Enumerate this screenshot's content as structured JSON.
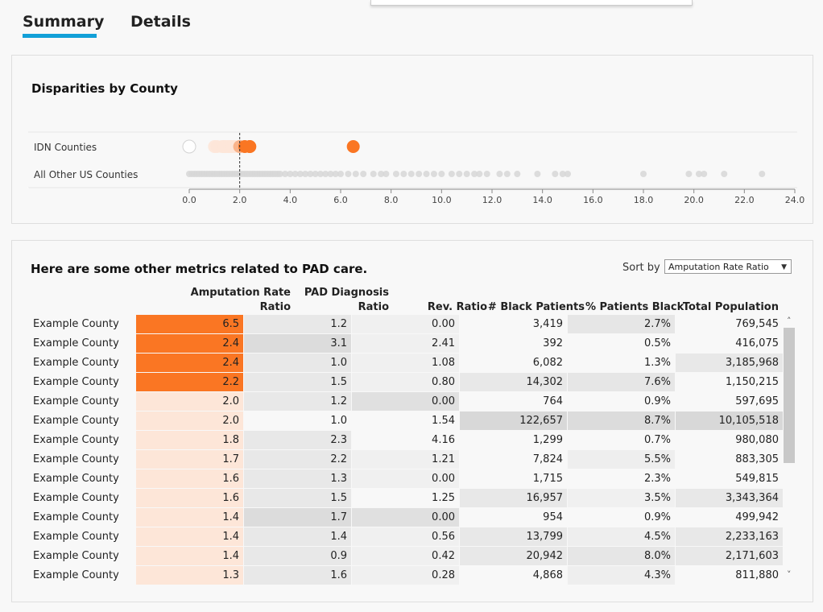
{
  "tabs": [
    {
      "label": "Summary",
      "active": true
    },
    {
      "label": "Details",
      "active": false
    }
  ],
  "chart_data": {
    "type": "scatter",
    "title": "Disparities by County",
    "rows": [
      "IDN Counties",
      "All Other US Counties"
    ],
    "xlim": [
      0,
      24
    ],
    "xticks": [
      "0.0",
      "2.0",
      "4.0",
      "6.0",
      "8.0",
      "10.0",
      "12.0",
      "14.0",
      "16.0",
      "18.0",
      "20.0",
      "22.0",
      "24.0"
    ],
    "reference_line": 2.0,
    "series": [
      {
        "row": "IDN Counties",
        "values": [
          0.0,
          1.0,
          1.1,
          1.3,
          1.4,
          1.4,
          1.4,
          1.5,
          1.6,
          1.6,
          1.7,
          1.8,
          2.0,
          2.0,
          2.2,
          2.4,
          2.4,
          6.5
        ]
      },
      {
        "row": "All Other US Counties",
        "values": [
          0.0,
          0.1,
          0.2,
          0.3,
          0.4,
          0.5,
          0.6,
          0.7,
          0.8,
          0.9,
          1.0,
          1.1,
          1.2,
          1.3,
          1.4,
          1.5,
          1.6,
          1.7,
          1.8,
          1.9,
          2.0,
          2.1,
          2.2,
          2.3,
          2.4,
          2.5,
          2.6,
          2.7,
          2.8,
          2.9,
          3.0,
          3.1,
          3.2,
          3.3,
          3.4,
          3.5,
          3.6,
          3.8,
          4.0,
          4.2,
          4.4,
          4.6,
          4.8,
          5.0,
          5.2,
          5.4,
          5.6,
          5.8,
          6.0,
          6.3,
          6.6,
          6.9,
          7.3,
          7.6,
          7.8,
          8.2,
          8.5,
          8.8,
          9.1,
          9.4,
          9.7,
          10.0,
          10.4,
          10.7,
          11.0,
          11.3,
          11.5,
          11.8,
          12.3,
          12.6,
          13.0,
          13.8,
          14.5,
          14.8,
          15.0,
          18.0,
          19.8,
          20.2,
          20.4,
          21.2,
          22.7
        ]
      }
    ],
    "colors": {
      "high": "#fa7623",
      "pale": "#fde6d8",
      "mid": "#f8b48b",
      "grey": "#d7d7d7",
      "ref": "#333333"
    }
  },
  "table": {
    "title": "Here are some other metrics related to PAD care.",
    "sort_label": "Sort by",
    "sort_value": "Amputation Rate Ratio",
    "headers": {
      "amp_line1": "Amputation Rate",
      "amp_line2": "Ratio",
      "pad_line1": "PAD Diagnosis",
      "pad_line2": "Ratio",
      "rev": "Rev. Ratio",
      "blk": "# Black Patients",
      "pct": "% Patients Black",
      "pop": "Total Population"
    },
    "rows": [
      {
        "county": "Example County",
        "amp": "6.5",
        "pad": "1.2",
        "rev": "0.00",
        "blk": "3,419",
        "pct": "2.7%",
        "pop": "769,545",
        "amp_hi": true
      },
      {
        "county": "Example County",
        "amp": "2.4",
        "pad": "3.1",
        "rev": "2.41",
        "blk": "392",
        "pct": "0.5%",
        "pop": "416,075",
        "amp_hi": true
      },
      {
        "county": "Example County",
        "amp": "2.4",
        "pad": "1.0",
        "rev": "1.08",
        "blk": "6,082",
        "pct": "1.3%",
        "pop": "3,185,968",
        "amp_hi": true
      },
      {
        "county": "Example County",
        "amp": "2.2",
        "pad": "1.5",
        "rev": "0.80",
        "blk": "14,302",
        "pct": "7.6%",
        "pop": "1,150,215",
        "amp_hi": true
      },
      {
        "county": "Example County",
        "amp": "2.0",
        "pad": "1.2",
        "rev": "0.00",
        "blk": "764",
        "pct": "0.9%",
        "pop": "597,695",
        "amp_hi": false
      },
      {
        "county": "Example County",
        "amp": "2.0",
        "pad": "1.0",
        "rev": "1.54",
        "blk": "122,657",
        "pct": "8.7%",
        "pop": "10,105,518",
        "amp_hi": false
      },
      {
        "county": "Example County",
        "amp": "1.8",
        "pad": "2.3",
        "rev": "4.16",
        "blk": "1,299",
        "pct": "0.7%",
        "pop": "980,080",
        "amp_hi": false
      },
      {
        "county": "Example County",
        "amp": "1.7",
        "pad": "2.2",
        "rev": "1.21",
        "blk": "7,824",
        "pct": "5.5%",
        "pop": "883,305",
        "amp_hi": false
      },
      {
        "county": "Example County",
        "amp": "1.6",
        "pad": "1.3",
        "rev": "0.00",
        "blk": "1,715",
        "pct": "2.3%",
        "pop": "549,815",
        "amp_hi": false
      },
      {
        "county": "Example County",
        "amp": "1.6",
        "pad": "1.5",
        "rev": "1.25",
        "blk": "16,957",
        "pct": "3.5%",
        "pop": "3,343,364",
        "amp_hi": false
      },
      {
        "county": "Example County",
        "amp": "1.4",
        "pad": "1.7",
        "rev": "0.00",
        "blk": "954",
        "pct": "0.9%",
        "pop": "499,942",
        "amp_hi": false
      },
      {
        "county": "Example County",
        "amp": "1.4",
        "pad": "1.4",
        "rev": "0.56",
        "blk": "13,799",
        "pct": "4.5%",
        "pop": "2,233,163",
        "amp_hi": false
      },
      {
        "county": "Example County",
        "amp": "1.4",
        "pad": "0.9",
        "rev": "0.42",
        "blk": "20,942",
        "pct": "8.0%",
        "pop": "2,171,603",
        "amp_hi": false
      },
      {
        "county": "Example County",
        "amp": "1.3",
        "pad": "1.6",
        "rev": "0.28",
        "blk": "4,868",
        "pct": "4.3%",
        "pop": "811,880",
        "amp_hi": false
      }
    ]
  }
}
